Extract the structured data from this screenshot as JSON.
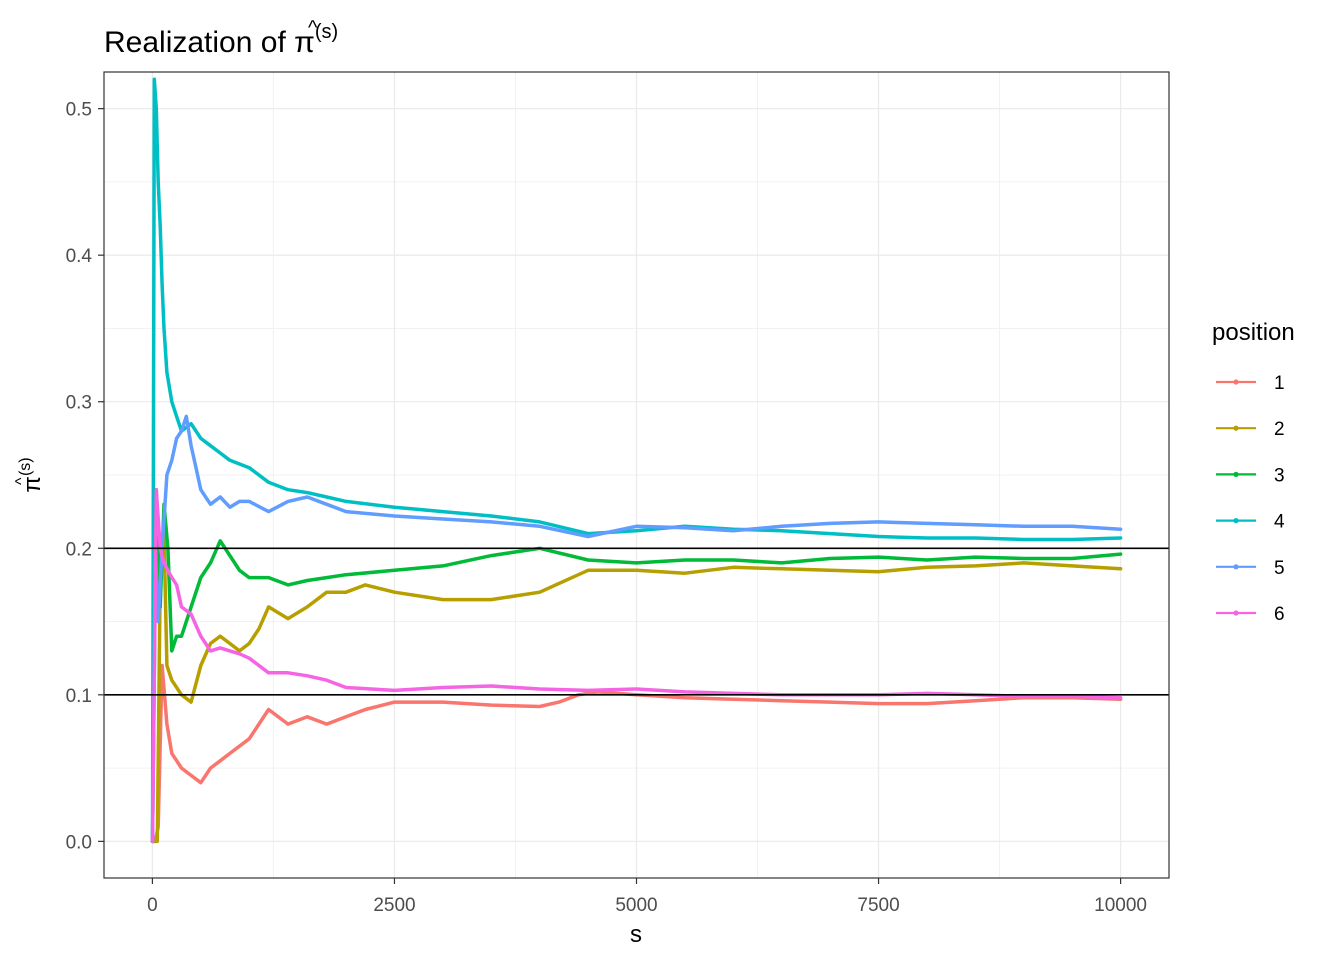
{
  "chart_data": {
    "type": "line",
    "title": {
      "prefix": "Realization of ",
      "symbol_hat": "^",
      "symbol": "π",
      "superscript": "(s)"
    },
    "xlabel": "s",
    "ylabel": {
      "symbol_hat": "^",
      "symbol": "π",
      "superscript": "(s)"
    },
    "xlim": [
      -500,
      10500
    ],
    "ylim": [
      -0.025,
      0.525
    ],
    "x_ticks": [
      0,
      2500,
      5000,
      7500,
      10000
    ],
    "x_tick_labels": [
      "0",
      "2500",
      "5000",
      "7500",
      "10000"
    ],
    "y_ticks": [
      0.0,
      0.1,
      0.2,
      0.3,
      0.4,
      0.5
    ],
    "y_tick_labels": [
      "0.0",
      "0.1",
      "0.2",
      "0.3",
      "0.4",
      "0.5"
    ],
    "reference_lines": [
      0.1,
      0.2
    ],
    "grid": true,
    "legend": {
      "title": "position",
      "placement": "right"
    },
    "series": [
      {
        "name": "1",
        "color": "#F8766D",
        "x": [
          1,
          30,
          60,
          100,
          150,
          200,
          300,
          400,
          500,
          600,
          700,
          800,
          1000,
          1200,
          1400,
          1600,
          1800,
          2000,
          2200,
          2500,
          3000,
          3500,
          4000,
          4200,
          4400,
          4600,
          5000,
          5500,
          6000,
          6500,
          7000,
          7500,
          8000,
          8500,
          9000,
          9500,
          10000
        ],
        "y": [
          0.0,
          0.0,
          0.01,
          0.12,
          0.08,
          0.06,
          0.05,
          0.045,
          0.04,
          0.05,
          0.055,
          0.06,
          0.07,
          0.09,
          0.08,
          0.085,
          0.08,
          0.085,
          0.09,
          0.095,
          0.095,
          0.093,
          0.092,
          0.095,
          0.1,
          0.102,
          0.1,
          0.098,
          0.097,
          0.096,
          0.095,
          0.094,
          0.094,
          0.096,
          0.098,
          0.098,
          0.097
        ]
      },
      {
        "name": "2",
        "color": "#B79F00",
        "x": [
          1,
          50,
          80,
          120,
          150,
          200,
          300,
          400,
          500,
          600,
          700,
          800,
          900,
          1000,
          1100,
          1200,
          1400,
          1600,
          1800,
          2000,
          2200,
          2500,
          3000,
          3500,
          4000,
          4500,
          5000,
          5500,
          6000,
          6500,
          7000,
          7500,
          8000,
          8500,
          9000,
          9500,
          10000
        ],
        "y": [
          0.0,
          0.0,
          0.18,
          0.21,
          0.12,
          0.11,
          0.1,
          0.095,
          0.12,
          0.135,
          0.14,
          0.135,
          0.13,
          0.135,
          0.145,
          0.16,
          0.152,
          0.16,
          0.17,
          0.17,
          0.175,
          0.17,
          0.165,
          0.165,
          0.17,
          0.185,
          0.185,
          0.183,
          0.187,
          0.186,
          0.185,
          0.184,
          0.187,
          0.188,
          0.19,
          0.188,
          0.186
        ]
      },
      {
        "name": "3",
        "color": "#00BA38",
        "x": [
          1,
          40,
          80,
          120,
          160,
          200,
          250,
          300,
          400,
          500,
          600,
          700,
          800,
          900,
          1000,
          1200,
          1400,
          1600,
          1800,
          2000,
          2500,
          3000,
          3500,
          4000,
          4500,
          5000,
          5500,
          6000,
          6500,
          7000,
          7500,
          8000,
          8500,
          9000,
          9500,
          10000
        ],
        "y": [
          0.0,
          0.24,
          0.16,
          0.23,
          0.2,
          0.13,
          0.14,
          0.14,
          0.16,
          0.18,
          0.19,
          0.205,
          0.195,
          0.185,
          0.18,
          0.18,
          0.175,
          0.178,
          0.18,
          0.182,
          0.185,
          0.188,
          0.195,
          0.2,
          0.192,
          0.19,
          0.192,
          0.192,
          0.19,
          0.193,
          0.194,
          0.192,
          0.194,
          0.193,
          0.193,
          0.196
        ]
      },
      {
        "name": "4",
        "color": "#00BFC4",
        "x": [
          1,
          20,
          40,
          60,
          80,
          100,
          120,
          150,
          200,
          250,
          300,
          400,
          500,
          600,
          700,
          800,
          1000,
          1200,
          1400,
          1600,
          1800,
          2000,
          2500,
          3000,
          3500,
          4000,
          4500,
          5000,
          5500,
          6000,
          6500,
          7000,
          7500,
          8000,
          8500,
          9000,
          9500,
          10000
        ],
        "y": [
          0.0,
          0.52,
          0.5,
          0.45,
          0.42,
          0.38,
          0.35,
          0.32,
          0.3,
          0.29,
          0.28,
          0.285,
          0.275,
          0.27,
          0.265,
          0.26,
          0.255,
          0.245,
          0.24,
          0.238,
          0.235,
          0.232,
          0.228,
          0.225,
          0.222,
          0.218,
          0.21,
          0.212,
          0.215,
          0.213,
          0.212,
          0.21,
          0.208,
          0.207,
          0.207,
          0.206,
          0.206,
          0.207
        ]
      },
      {
        "name": "5",
        "color": "#619CFF",
        "x": [
          1,
          30,
          60,
          100,
          150,
          200,
          250,
          300,
          350,
          400,
          450,
          500,
          600,
          700,
          800,
          900,
          1000,
          1200,
          1400,
          1600,
          1800,
          2000,
          2500,
          3000,
          3500,
          4000,
          4500,
          5000,
          5500,
          6000,
          6500,
          7000,
          7500,
          8000,
          8500,
          9000,
          9500,
          10000
        ],
        "y": [
          0.0,
          0.2,
          0.15,
          0.2,
          0.25,
          0.26,
          0.275,
          0.28,
          0.29,
          0.27,
          0.255,
          0.24,
          0.23,
          0.235,
          0.228,
          0.232,
          0.232,
          0.225,
          0.232,
          0.235,
          0.23,
          0.225,
          0.222,
          0.22,
          0.218,
          0.215,
          0.208,
          0.215,
          0.214,
          0.212,
          0.215,
          0.217,
          0.218,
          0.217,
          0.216,
          0.215,
          0.215,
          0.213
        ]
      },
      {
        "name": "6",
        "color": "#F564E3",
        "x": [
          1,
          40,
          80,
          120,
          160,
          200,
          250,
          300,
          400,
          500,
          600,
          700,
          800,
          900,
          1000,
          1200,
          1400,
          1600,
          1800,
          2000,
          2500,
          3000,
          3500,
          4000,
          4500,
          5000,
          5500,
          6000,
          6500,
          7000,
          7500,
          8000,
          8500,
          9000,
          9500,
          10000
        ],
        "y": [
          0.0,
          0.24,
          0.2,
          0.19,
          0.185,
          0.18,
          0.175,
          0.16,
          0.155,
          0.14,
          0.13,
          0.132,
          0.13,
          0.128,
          0.125,
          0.115,
          0.115,
          0.113,
          0.11,
          0.105,
          0.103,
          0.105,
          0.106,
          0.104,
          0.103,
          0.104,
          0.102,
          0.101,
          0.1,
          0.1,
          0.1,
          0.101,
          0.1,
          0.099,
          0.099,
          0.098
        ]
      }
    ]
  }
}
